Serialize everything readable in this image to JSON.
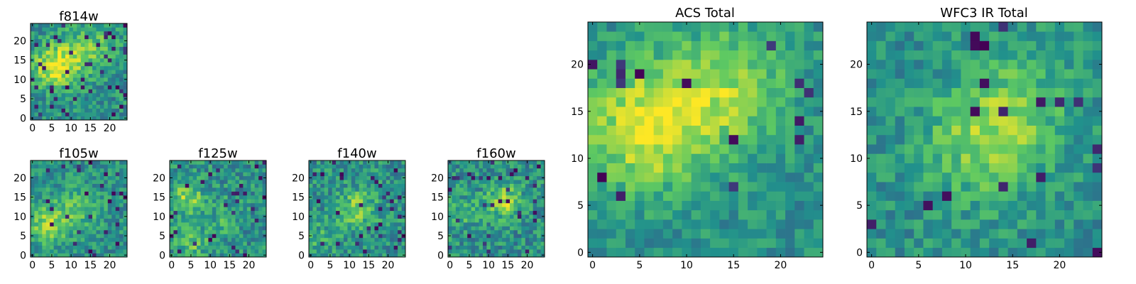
{
  "figure": {
    "colormap": "viridis",
    "colormap_stops": [
      "#440154",
      "#3b528b",
      "#21918c",
      "#5ec962",
      "#fde725"
    ],
    "background": "#ffffff",
    "axis_color": "#000000"
  },
  "chart_data": [
    {
      "type": "heatmap",
      "id": "f814w",
      "title": "f814w",
      "grid_size": 25,
      "xlim": [
        0,
        24
      ],
      "ylim": [
        0,
        24
      ],
      "xticks": [
        0,
        5,
        10,
        15,
        20
      ],
      "yticks": [
        0,
        5,
        10,
        15,
        20
      ],
      "seed": 814,
      "noise": 0.17,
      "dark_fraction": 0.05,
      "blobs": [
        {
          "x": 5,
          "y": 13,
          "amp": 0.38,
          "sigma": 3.5
        },
        {
          "x": 11,
          "y": 16,
          "amp": 0.28,
          "sigma": 4.5
        },
        {
          "x": 18,
          "y": 20,
          "amp": 0.15,
          "sigma": 3.5
        }
      ]
    },
    {
      "type": "heatmap",
      "id": "f105w",
      "title": "f105w",
      "grid_size": 25,
      "xlim": [
        0,
        24
      ],
      "ylim": [
        0,
        24
      ],
      "xticks": [
        0,
        5,
        10,
        15,
        20
      ],
      "yticks": [
        0,
        5,
        10,
        15,
        20
      ],
      "seed": 105,
      "noise": 0.16,
      "dark_fraction": 0.04,
      "blobs": [
        {
          "x": 4,
          "y": 8,
          "amp": 0.32,
          "sigma": 3.5
        },
        {
          "x": 12,
          "y": 12,
          "amp": 0.2,
          "sigma": 4
        }
      ]
    },
    {
      "type": "heatmap",
      "id": "f125w",
      "title": "f125w",
      "grid_size": 25,
      "xlim": [
        0,
        24
      ],
      "ylim": [
        0,
        24
      ],
      "xticks": [
        0,
        5,
        10,
        15,
        20
      ],
      "yticks": [
        0,
        5,
        10,
        15,
        20
      ],
      "seed": 125,
      "noise": 0.18,
      "dark_fraction": 0.04,
      "blobs": [
        {
          "x": 4,
          "y": 15,
          "amp": 0.3,
          "sigma": 3
        },
        {
          "x": 5,
          "y": 4,
          "amp": 0.25,
          "sigma": 3
        },
        {
          "x": 14,
          "y": 10,
          "amp": 0.15,
          "sigma": 3
        }
      ]
    },
    {
      "type": "heatmap",
      "id": "f140w",
      "title": "f140w",
      "grid_size": 25,
      "xlim": [
        0,
        24
      ],
      "ylim": [
        0,
        24
      ],
      "xticks": [
        0,
        5,
        10,
        15,
        20
      ],
      "yticks": [
        0,
        5,
        10,
        15,
        20
      ],
      "seed": 140,
      "noise": 0.18,
      "dark_fraction": 0.05,
      "blobs": [
        {
          "x": 12,
          "y": 12,
          "amp": 0.3,
          "sigma": 3.5
        },
        {
          "x": 3,
          "y": 4,
          "amp": 0.15,
          "sigma": 3
        }
      ]
    },
    {
      "type": "heatmap",
      "id": "f160w",
      "title": "f160w",
      "grid_size": 25,
      "xlim": [
        0,
        24
      ],
      "ylim": [
        0,
        24
      ],
      "xticks": [
        0,
        5,
        10,
        15,
        20
      ],
      "yticks": [
        0,
        5,
        10,
        15,
        20
      ],
      "seed": 160,
      "noise": 0.18,
      "dark_fraction": 0.05,
      "blobs": [
        {
          "x": 14,
          "y": 14,
          "amp": 0.35,
          "sigma": 3
        },
        {
          "x": 3,
          "y": 11,
          "amp": 0.15,
          "sigma": 3
        }
      ]
    },
    {
      "type": "heatmap",
      "id": "acs-total",
      "title": "ACS Total",
      "grid_size": 25,
      "xlim": [
        0,
        24
      ],
      "ylim": [
        0,
        24
      ],
      "xticks": [
        0,
        5,
        10,
        15,
        20
      ],
      "yticks": [
        0,
        5,
        10,
        15,
        20
      ],
      "seed": 1001,
      "noise": 0.13,
      "dark_fraction": 0.03,
      "blobs": [
        {
          "x": 5,
          "y": 13,
          "amp": 0.4,
          "sigma": 4.5
        },
        {
          "x": 12,
          "y": 16,
          "amp": 0.25,
          "sigma": 5
        },
        {
          "x": 16,
          "y": 19,
          "amp": 0.15,
          "sigma": 4
        }
      ]
    },
    {
      "type": "heatmap",
      "id": "wfc3-ir-total",
      "title": "WFC3 IR Total",
      "grid_size": 25,
      "xlim": [
        0,
        24
      ],
      "ylim": [
        0,
        24
      ],
      "xticks": [
        0,
        5,
        10,
        15,
        20
      ],
      "yticks": [
        0,
        5,
        10,
        15,
        20
      ],
      "seed": 2002,
      "noise": 0.14,
      "dark_fraction": 0.03,
      "blobs": [
        {
          "x": 12,
          "y": 12,
          "amp": 0.3,
          "sigma": 4.5
        },
        {
          "x": 16,
          "y": 16,
          "amp": 0.15,
          "sigma": 4
        }
      ]
    }
  ]
}
